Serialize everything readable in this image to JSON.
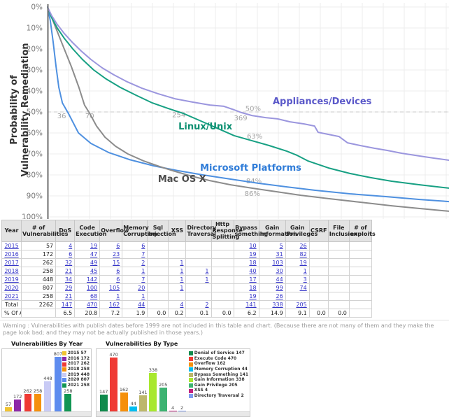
{
  "chart_data": [
    {
      "type": "line",
      "ylabel": "Probability of Vulnerability Remediation",
      "ylabel_lines": [
        "Probability of",
        "Vulnerability Remediation"
      ],
      "y_ticks": [
        "0%",
        "10%",
        "20%",
        "30%",
        "40%",
        "50%",
        "60%",
        "70%",
        "80%",
        "90%",
        "100%"
      ],
      "ylim": [
        0,
        100
      ],
      "grid": true,
      "reference_line_pct": 50,
      "series": [
        {
          "name": "Microsoft Platforms",
          "color": "#4e90e0",
          "label_color": "#2f7cd8",
          "label_pos": [
            0.38,
            78.0
          ],
          "points": [
            [
              0,
              0
            ],
            [
              0.007,
              6.7
            ],
            [
              0.014,
              16.7
            ],
            [
              0.021,
              28.3
            ],
            [
              0.028,
              38.3
            ],
            [
              0.037,
              45.7
            ],
            [
              0.052,
              50.7
            ],
            [
              0.077,
              60
            ],
            [
              0.108,
              65
            ],
            [
              0.152,
              69.3
            ],
            [
              0.204,
              72.7
            ],
            [
              0.265,
              75.7
            ],
            [
              0.326,
              78
            ],
            [
              0.387,
              80
            ],
            [
              0.456,
              82
            ],
            [
              0.526,
              84
            ],
            [
              0.596,
              85.7
            ],
            [
              0.665,
              87.3
            ],
            [
              0.753,
              89
            ],
            [
              0.84,
              90.3
            ],
            [
              0.927,
              91.7
            ],
            [
              1,
              92.7
            ]
          ]
        },
        {
          "name": "Mac OS X",
          "color": "#8c8c8c",
          "label_color": "#4c4c4c",
          "label_pos": [
            0.275,
            83.3
          ],
          "points": [
            [
              0,
              0
            ],
            [
              0.017,
              8.3
            ],
            [
              0.038,
              18.3
            ],
            [
              0.059,
              28.3
            ],
            [
              0.078,
              38.3
            ],
            [
              0.092,
              46.7
            ],
            [
              0.105,
              50.7
            ],
            [
              0.122,
              56.7
            ],
            [
              0.143,
              62
            ],
            [
              0.169,
              66.3
            ],
            [
              0.2,
              70
            ],
            [
              0.239,
              73.3
            ],
            [
              0.279,
              76
            ],
            [
              0.317,
              78.3
            ],
            [
              0.361,
              80.7
            ],
            [
              0.404,
              82.7
            ],
            [
              0.456,
              84.7
            ],
            [
              0.509,
              86.3
            ],
            [
              0.57,
              88
            ],
            [
              0.631,
              89.7
            ],
            [
              0.7,
              91.3
            ],
            [
              0.779,
              93
            ],
            [
              0.857,
              94.7
            ],
            [
              0.927,
              96
            ],
            [
              1,
              97.3
            ]
          ]
        },
        {
          "name": "Linux/Unix",
          "color": "#17a083",
          "label_color": "#0e9072",
          "label_pos": [
            0.326,
            58.3
          ],
          "points": [
            [
              0,
              0
            ],
            [
              0.01,
              5
            ],
            [
              0.024,
              10
            ],
            [
              0.042,
              15
            ],
            [
              0.063,
              20
            ],
            [
              0.087,
              25
            ],
            [
              0.115,
              30
            ],
            [
              0.146,
              34.3
            ],
            [
              0.181,
              38.3
            ],
            [
              0.22,
              42
            ],
            [
              0.261,
              45.7
            ],
            [
              0.3,
              48.3
            ],
            [
              0.338,
              50.7
            ],
            [
              0.378,
              54
            ],
            [
              0.422,
              57.7
            ],
            [
              0.465,
              61.3
            ],
            [
              0.509,
              63.7
            ],
            [
              0.552,
              66
            ],
            [
              0.596,
              68.7
            ],
            [
              0.622,
              70.7
            ],
            [
              0.648,
              73.3
            ],
            [
              0.7,
              76.7
            ],
            [
              0.753,
              79.3
            ],
            [
              0.805,
              81.3
            ],
            [
              0.857,
              83
            ],
            [
              0.927,
              84.7
            ],
            [
              1,
              86.3
            ]
          ]
        },
        {
          "name": "Appliances/Devices",
          "color": "#9b96de",
          "label_color": "#5a58c9",
          "label_pos": [
            0.561,
            46.3
          ],
          "points": [
            [
              0,
              0
            ],
            [
              0.01,
              4
            ],
            [
              0.024,
              8.3
            ],
            [
              0.042,
              12.7
            ],
            [
              0.061,
              16.7
            ],
            [
              0.084,
              21
            ],
            [
              0.108,
              25
            ],
            [
              0.136,
              29
            ],
            [
              0.165,
              32.3
            ],
            [
              0.199,
              35.7
            ],
            [
              0.235,
              38.7
            ],
            [
              0.275,
              41.3
            ],
            [
              0.317,
              43.7
            ],
            [
              0.361,
              45.3
            ],
            [
              0.404,
              46.7
            ],
            [
              0.439,
              47.3
            ],
            [
              0.465,
              49
            ],
            [
              0.483,
              50.3
            ],
            [
              0.509,
              51.7
            ],
            [
              0.543,
              52.7
            ],
            [
              0.573,
              53.3
            ],
            [
              0.604,
              54.7
            ],
            [
              0.639,
              55.7
            ],
            [
              0.665,
              56.7
            ],
            [
              0.674,
              59.7
            ],
            [
              0.7,
              60.7
            ],
            [
              0.726,
              61.7
            ],
            [
              0.747,
              64.7
            ],
            [
              0.779,
              66
            ],
            [
              0.814,
              67.3
            ],
            [
              0.845,
              68.3
            ],
            [
              0.883,
              69.7
            ],
            [
              0.927,
              71
            ],
            [
              0.962,
              72
            ],
            [
              1,
              73
            ]
          ]
        }
      ],
      "annotations": [
        {
          "text": "36",
          "x": 0.035,
          "pct": 53.0
        },
        {
          "text": "70",
          "x": 0.105,
          "pct": 53.0
        },
        {
          "text": "254",
          "x": 0.327,
          "pct": 52.5
        },
        {
          "text": "369",
          "x": 0.481,
          "pct": 54.0
        },
        {
          "text": "50%",
          "x": 0.512,
          "pct": 49.5
        },
        {
          "text": "63%",
          "x": 0.516,
          "pct": 62.7
        },
        {
          "text": "84%",
          "x": 0.514,
          "pct": 84.0
        },
        {
          "text": "86%",
          "x": 0.51,
          "pct": 90.0
        }
      ]
    },
    {
      "type": "bar",
      "title": "Vulnerabilities By Year",
      "entries": [
        {
          "label": "2015",
          "value": 57,
          "color": "#f0c330"
        },
        {
          "label": "2016",
          "value": 172,
          "color": "#8d29a8"
        },
        {
          "label": "2017",
          "value": 262,
          "color": "#ef3a34"
        },
        {
          "label": "2018",
          "value": 258,
          "color": "#f5900c"
        },
        {
          "label": "2019",
          "value": 448,
          "color": "#c9cbf5"
        },
        {
          "label": "2020",
          "value": 807,
          "color": "#5e8cef"
        },
        {
          "label": "2021",
          "value": 258,
          "color": "#119553"
        }
      ]
    },
    {
      "type": "bar",
      "title": "Vulnerabilities By Type",
      "entries": [
        {
          "label": "Denial of Service",
          "value": 147,
          "color": "#0f8a4c"
        },
        {
          "label": "Execute Code",
          "value": 470,
          "color": "#ef3a34"
        },
        {
          "label": "Overflow",
          "value": 162,
          "color": "#f5900c"
        },
        {
          "label": "Memory Corruption",
          "value": 44,
          "color": "#00bdf0"
        },
        {
          "label": "Bypass Something",
          "value": 141,
          "color": "#bdb76b"
        },
        {
          "label": "Gain Information",
          "value": 338,
          "color": "#a8e82e"
        },
        {
          "label": "Gain Privilege",
          "value": 205,
          "color": "#3cb371"
        },
        {
          "label": "XSS",
          "value": 4,
          "color": "#c2217f"
        },
        {
          "label": "Directory Traversal",
          "value": 2,
          "color": "#7f9cef"
        }
      ]
    }
  ],
  "table": {
    "columns": [
      "Year",
      "# of Vulnerabilities",
      "DoS",
      "Code Execution",
      "Overflow",
      "Memory Corruption",
      "Sql Injection",
      "XSS",
      "Directory Traversal",
      "Http Response Splitting",
      "Bypass something",
      "Gain Information",
      "Gain Privileges",
      "CSRF",
      "File Inclusion",
      "# of exploits"
    ],
    "rows": [
      {
        "type": "year",
        "cells": [
          "2015",
          "57",
          "4",
          "19",
          "6",
          "6",
          "",
          "",
          "",
          "",
          "10",
          "5",
          "26",
          "",
          "",
          ""
        ]
      },
      {
        "type": "year",
        "cells": [
          "2016",
          "172",
          "6",
          "47",
          "23",
          "7",
          "",
          "",
          "",
          "",
          "19",
          "31",
          "82",
          "",
          "",
          ""
        ]
      },
      {
        "type": "year",
        "cells": [
          "2017",
          "262",
          "32",
          "49",
          "15",
          "2",
          "",
          "1",
          "",
          "",
          "18",
          "103",
          "19",
          "",
          "",
          ""
        ]
      },
      {
        "type": "year",
        "cells": [
          "2018",
          "258",
          "21",
          "45",
          "6",
          "1",
          "",
          "1",
          "1",
          "",
          "40",
          "30",
          "1",
          "",
          "",
          ""
        ]
      },
      {
        "type": "year",
        "cells": [
          "2019",
          "448",
          "34",
          "142",
          "6",
          "7",
          "",
          "1",
          "1",
          "",
          "17",
          "44",
          "3",
          "",
          "",
          ""
        ]
      },
      {
        "type": "year",
        "cells": [
          "2020",
          "807",
          "29",
          "100",
          "105",
          "20",
          "",
          "1",
          "",
          "",
          "18",
          "99",
          "74",
          "",
          "",
          ""
        ]
      },
      {
        "type": "year",
        "cells": [
          "2021",
          "258",
          "21",
          "68",
          "1",
          "1",
          "",
          "",
          "",
          "",
          "19",
          "26",
          "",
          "",
          "",
          ""
        ]
      },
      {
        "type": "total",
        "cells": [
          "Total",
          "2262",
          "147",
          "470",
          "162",
          "44",
          "",
          "4",
          "2",
          "",
          "141",
          "338",
          "205",
          "",
          "",
          ""
        ]
      },
      {
        "type": "pct",
        "cells": [
          "% Of All",
          "",
          "6.5",
          "20.8",
          "7.2",
          "1.9",
          "0.0",
          "0.2",
          "0.1",
          "0.0",
          "6.2",
          "14.9",
          "9.1",
          "0.0",
          "0.0",
          ""
        ]
      }
    ]
  },
  "warning": "Warning : Vulnerabilities with publish dates before 1999 are not included in this table and chart. (Because there are not many of them and they make the page look bad; and they may not be actually published in those years.)"
}
